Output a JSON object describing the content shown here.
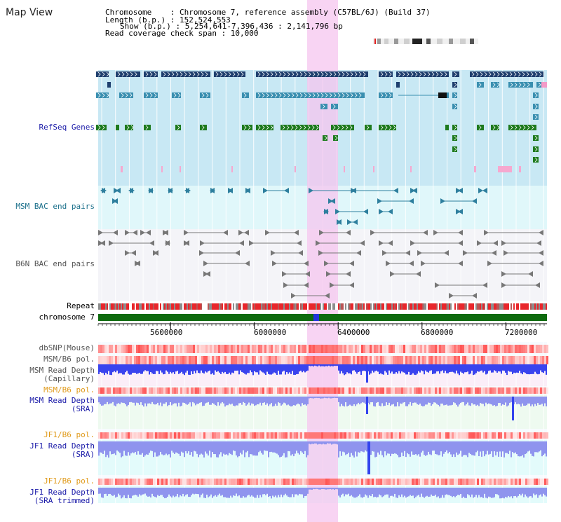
{
  "view_title": "Map View",
  "info": {
    "chromosome_line": "Chromosome    : Chromosome 7, reference assembly (C57BL/6J) (Build 37)",
    "length_line": "Length (b.p.) : 152,524,553",
    "show_line": "Show (b.p.) : 5,254,641-7,396,436 : 2,141,796 bp",
    "coverage_line": "Read coverage check span : 10,000"
  },
  "tracks": {
    "refseq": "RefSeq Genes",
    "msm_bac": "MSM BAC end pairs",
    "b6n_bac": "B6N BAC end pairs",
    "repeat": "Repeat",
    "chromosome": "chromosome 7",
    "dbsnp": "dbSNP(Mouse)",
    "msm_b6_pol_1": "MSM/B6 pol.",
    "msm_depth_cap_1": "MSM Read Depth",
    "msm_depth_cap_2": "(Capillary)",
    "msm_b6_pol_2": "MSM/B6 pol.",
    "msm_depth_sra_1": "MSM Read Depth",
    "msm_depth_sra_2": "(SRA)",
    "jf1_b6_pol_1": "JF1/B6 pol.",
    "jf1_depth_sra_1": "JF1 Read Depth",
    "jf1_depth_sra_2": "(SRA)",
    "jf1_b6_pol_2": "JF1/B6 pol.",
    "jf1_depth_trim_1": "JF1 Read Depth",
    "jf1_depth_trim_2": "(SRA trimmed)"
  },
  "axis": {
    "ticks": [
      5600000,
      6000000,
      6400000,
      6800000,
      7200000
    ],
    "tick_labels": [
      "5600000",
      "6000000",
      "6400000",
      "6800000",
      "7200000"
    ],
    "start": 5254641,
    "end": 7396436
  },
  "colors": {
    "highlight": "#f5c6ef",
    "refseq_bg": "#c8e8f4",
    "gene_navy": "#1f3f6e",
    "gene_teal": "#3a8fb0",
    "gene_green": "#1e7a1e",
    "gene_pink": "#f6a8cf",
    "depth_blue": "#3344ee",
    "depth_light": "#8f94ee",
    "pol_orange": "#e09a1a",
    "track_blue": "#1a1aa8",
    "chromosome_green": "#0e6b0e"
  }
}
